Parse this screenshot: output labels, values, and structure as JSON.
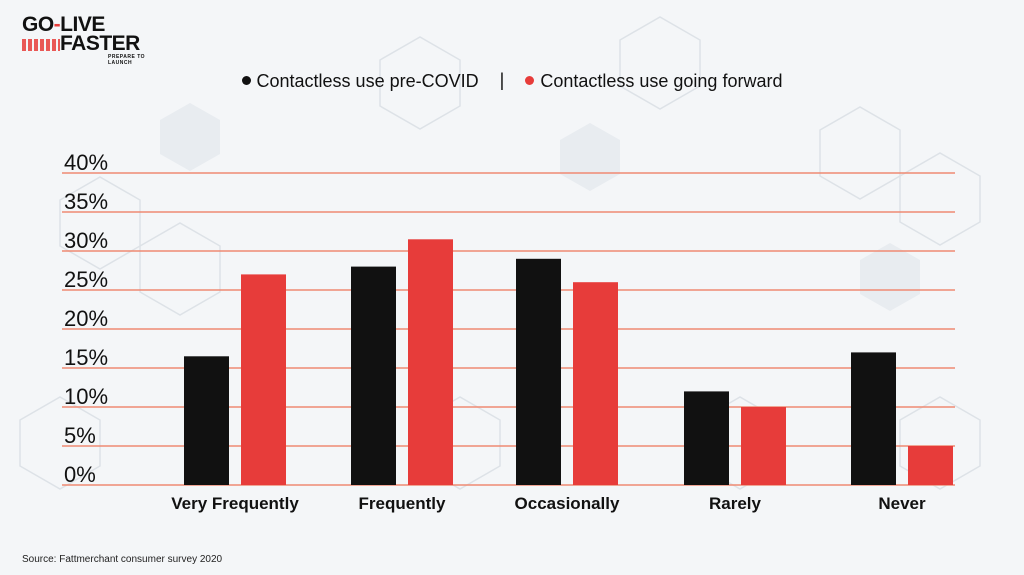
{
  "logo": {
    "line1_a": "GO",
    "line1_b": "-",
    "line1_c": "LIVE",
    "line2": "FASTER",
    "tagline": "PREPARE TO LAUNCH"
  },
  "legend": {
    "separator": "|"
  },
  "source": "Source: Fattmerchant consumer survey 2020",
  "colors": {
    "series1": "#111111",
    "series2": "#e73c3a",
    "gridline": "#ef8a72"
  },
  "chart_data": {
    "type": "bar",
    "title": "",
    "xlabel": "",
    "ylabel": "",
    "categories": [
      "Very Frequently",
      "Frequently",
      "Occasionally",
      "Rarely",
      "Never"
    ],
    "series": [
      {
        "name": "Contactless use pre-COVID",
        "values": [
          16.5,
          28,
          29,
          12,
          17
        ]
      },
      {
        "name": "Contactless use going forward",
        "values": [
          27,
          31.5,
          26,
          10,
          5
        ]
      }
    ],
    "ylim": [
      0,
      40
    ],
    "yticks": [
      "0%",
      "5%",
      "10%",
      "15%",
      "20%",
      "25%",
      "30%",
      "35%",
      "40%"
    ],
    "grid": true,
    "legend_position": "top-center"
  }
}
